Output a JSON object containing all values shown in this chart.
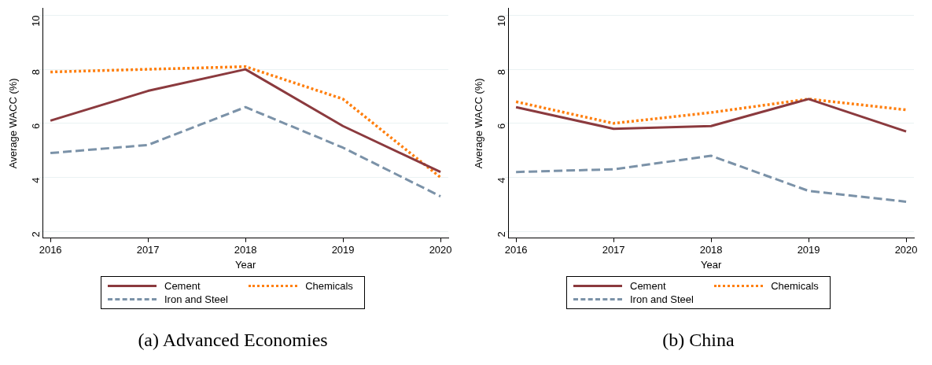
{
  "chart_data": [
    {
      "type": "line",
      "xlabel": "Year",
      "ylabel": "Average WACC (%)",
      "x": [
        2016,
        2017,
        2018,
        2019,
        2020
      ],
      "xlim": [
        2015.92,
        2020.08
      ],
      "xticks": [
        2016,
        2017,
        2018,
        2019,
        2020
      ],
      "ylim": [
        1.75,
        10.25
      ],
      "yticks": [
        2,
        4,
        6,
        8,
        10
      ],
      "grid": "y",
      "legend": "bottom",
      "marker": "none",
      "annotations": [
        "(a)  Advanced Economies"
      ],
      "series": [
        {
          "name": "Cement",
          "color": "#8b3a3e",
          "line_style": "solid",
          "values": [
            6.1,
            7.2,
            8.0,
            5.9,
            4.2
          ]
        },
        {
          "name": "Chemicals",
          "color": "#ff7f0e",
          "line_style": "dotted",
          "values": [
            7.9,
            8.0,
            8.1,
            6.9,
            4.0
          ]
        },
        {
          "name": "Iron and Steel",
          "color": "#7b92a8",
          "line_style": "dashed",
          "values": [
            4.9,
            5.2,
            6.6,
            5.1,
            3.3
          ]
        }
      ]
    },
    {
      "type": "line",
      "xlabel": "Year",
      "ylabel": "Average WACC (%)",
      "x": [
        2016,
        2017,
        2018,
        2019,
        2020
      ],
      "xlim": [
        2015.92,
        2020.08
      ],
      "xticks": [
        2016,
        2017,
        2018,
        2019,
        2020
      ],
      "ylim": [
        1.75,
        10.25
      ],
      "yticks": [
        2,
        4,
        6,
        8,
        10
      ],
      "grid": "y",
      "legend": "bottom",
      "marker": "none",
      "annotations": [
        "(b)  China"
      ],
      "series": [
        {
          "name": "Cement",
          "color": "#8b3a3e",
          "line_style": "solid",
          "values": [
            6.6,
            5.8,
            5.9,
            6.9,
            5.7
          ]
        },
        {
          "name": "Chemicals",
          "color": "#ff7f0e",
          "line_style": "dotted",
          "values": [
            6.8,
            6.0,
            6.4,
            6.9,
            6.5
          ]
        },
        {
          "name": "Iron and Steel",
          "color": "#7b92a8",
          "line_style": "dashed",
          "values": [
            4.2,
            4.3,
            4.8,
            3.5,
            3.1
          ]
        }
      ]
    }
  ]
}
